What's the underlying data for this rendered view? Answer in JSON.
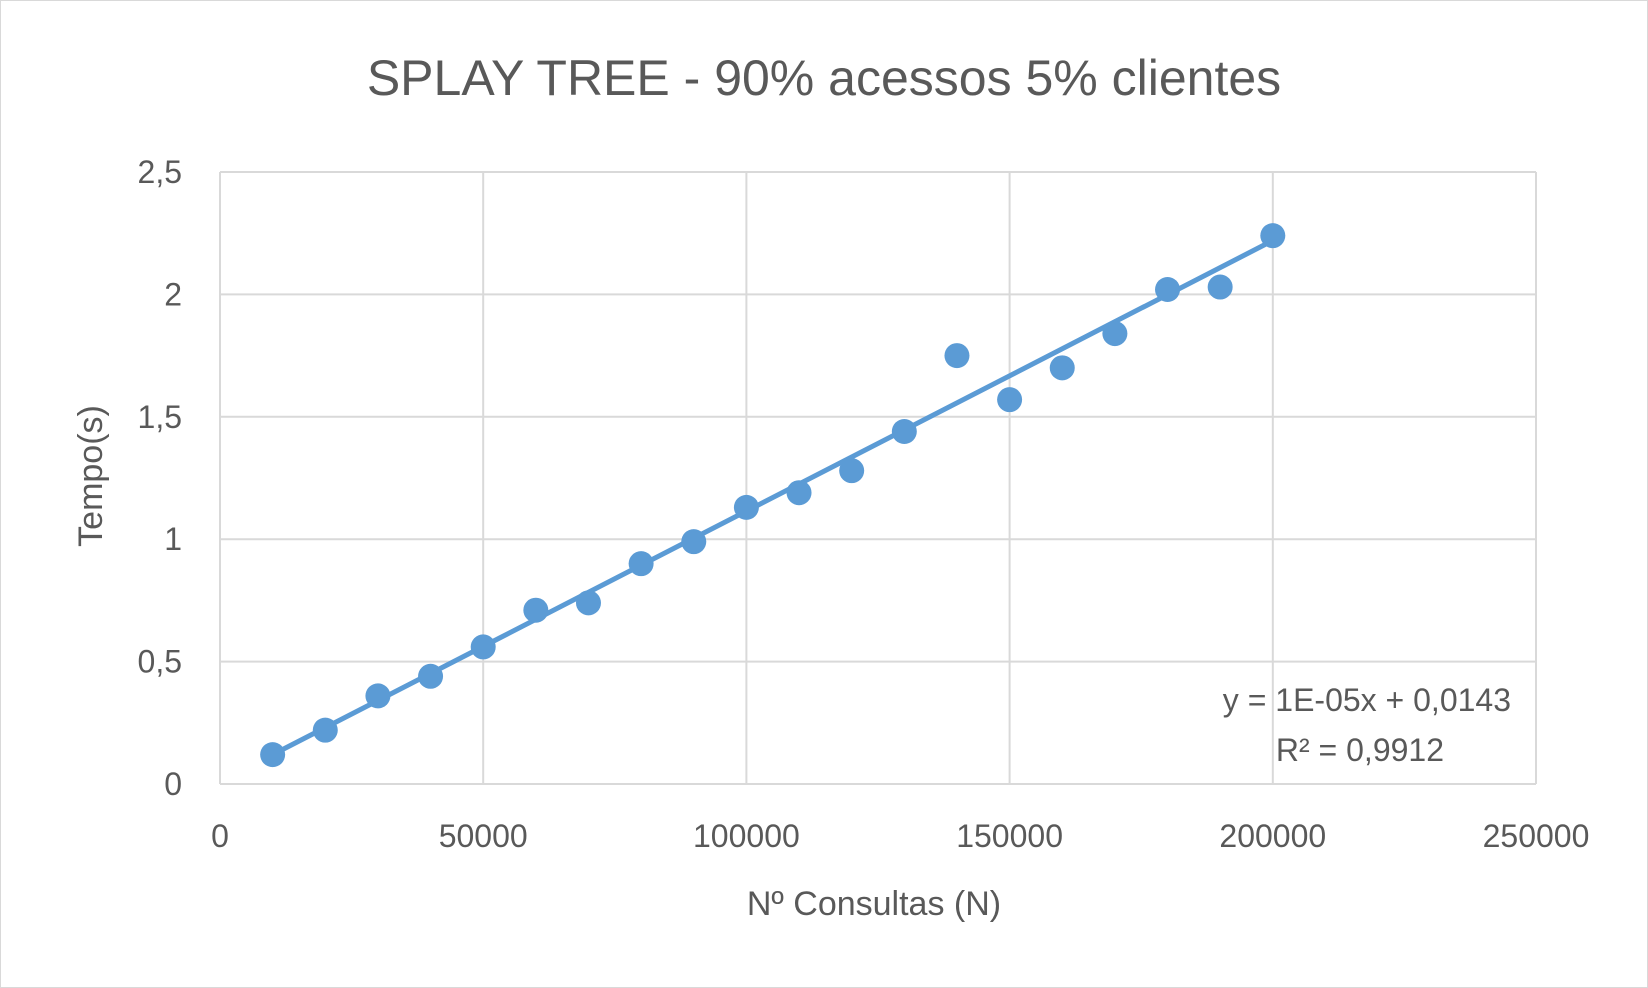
{
  "chart_data": {
    "type": "scatter",
    "title": "SPLAY TREE - 90% acessos 5% clientes",
    "xlabel": "Nº Consultas (N)",
    "ylabel": "Tempo(s)",
    "xlim": [
      0,
      250000
    ],
    "ylim": [
      0,
      2.5
    ],
    "x_ticks": [
      "0",
      "50000",
      "100000",
      "150000",
      "200000",
      "250000"
    ],
    "y_ticks": [
      "0",
      "0,5",
      "1",
      "1,5",
      "2",
      "2,5"
    ],
    "grid": true,
    "legend": "none",
    "colors": {
      "points": "#5b9bd5",
      "trendline": "#5b9bd5",
      "grid": "#d9d9d9",
      "text": "#595959"
    },
    "series": [
      {
        "x": [
          10000,
          20000,
          30000,
          40000,
          50000,
          60000,
          70000,
          80000,
          90000,
          100000,
          110000,
          120000,
          130000,
          140000,
          150000,
          160000,
          170000,
          180000,
          190000,
          200000
        ],
        "y": [
          0.12,
          0.22,
          0.36,
          0.44,
          0.56,
          0.71,
          0.74,
          0.9,
          0.99,
          1.13,
          1.19,
          1.28,
          1.44,
          1.75,
          1.57,
          1.7,
          1.84,
          2.02,
          2.03,
          2.24
        ]
      }
    ],
    "trendline": {
      "type": "linear",
      "x_range": [
        10000,
        200000
      ],
      "y_range": [
        0.12,
        2.22
      ],
      "equation": "y = 1E-05x + 0,0143",
      "r_squared": "R² = 0,9912"
    }
  }
}
